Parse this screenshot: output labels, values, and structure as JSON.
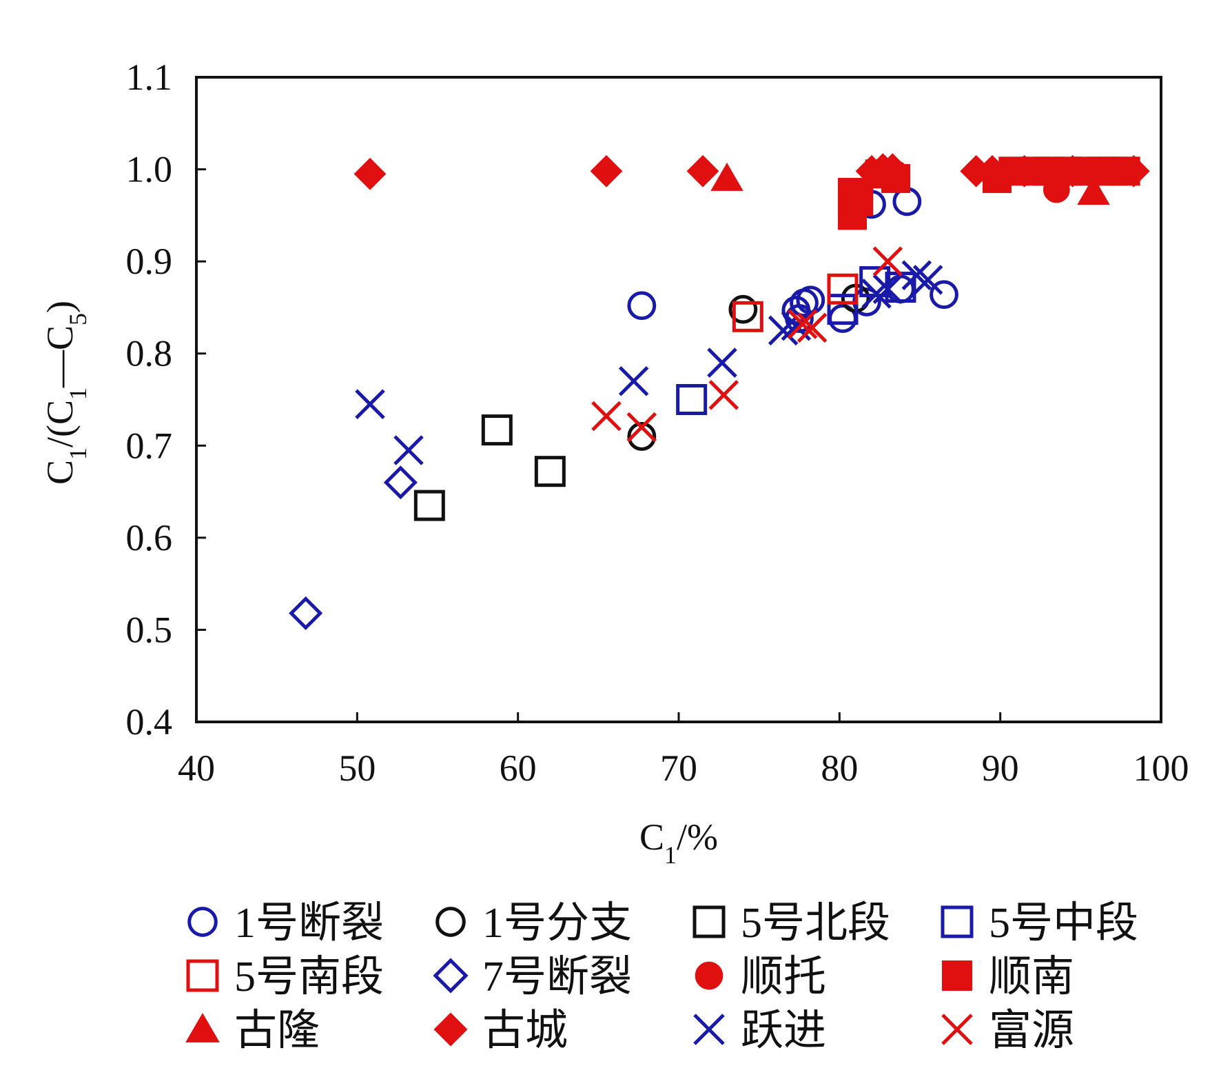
{
  "chart_data": {
    "type": "scatter",
    "title": "",
    "xlabel": "C1/%",
    "ylabel": "C1/(C1—C5)",
    "xlim": [
      40,
      100
    ],
    "ylim": [
      0.4,
      1.1
    ],
    "xticks": [
      "40",
      "50",
      "60",
      "70",
      "80",
      "90",
      "100"
    ],
    "yticks": [
      "0.4",
      "0.5",
      "0.6",
      "0.7",
      "0.8",
      "0.9",
      "1.0",
      "1.1"
    ],
    "grid": false,
    "legend_position": "bottom",
    "series": [
      {
        "name": "1号断裂",
        "marker": "circle-open",
        "color": "#1a1aa8",
        "points": [
          [
            67.7,
            0.852
          ],
          [
            77.3,
            0.847
          ],
          [
            77.8,
            0.855
          ],
          [
            78.2,
            0.858
          ],
          [
            77.5,
            0.838
          ],
          [
            80.2,
            0.838
          ],
          [
            81.7,
            0.856
          ],
          [
            83.8,
            0.87
          ],
          [
            86.5,
            0.864
          ],
          [
            82,
            0.962
          ],
          [
            84.2,
            0.965
          ]
        ]
      },
      {
        "name": "1号分支",
        "marker": "circle-open",
        "color": "#111111",
        "points": [
          [
            67.7,
            0.71
          ],
          [
            74,
            0.848
          ],
          [
            81,
            0.86
          ]
        ]
      },
      {
        "name": "5号北段",
        "marker": "square-open",
        "color": "#111111",
        "points": [
          [
            58.7,
            0.717
          ],
          [
            54.5,
            0.635
          ],
          [
            62,
            0.672
          ]
        ]
      },
      {
        "name": "5号中段",
        "marker": "square-open",
        "color": "#1a1aa8",
        "points": [
          [
            70.8,
            0.75
          ],
          [
            80.2,
            0.848
          ],
          [
            82.2,
            0.878
          ],
          [
            83.8,
            0.872
          ]
        ]
      },
      {
        "name": "5号南段",
        "marker": "square-open",
        "color": "#e01010",
        "points": [
          [
            74.3,
            0.84
          ],
          [
            80.2,
            0.87
          ]
        ]
      },
      {
        "name": "7号断裂",
        "marker": "diamond-open",
        "color": "#1a1aa8",
        "points": [
          [
            46.8,
            0.518
          ],
          [
            52.7,
            0.66
          ]
        ]
      },
      {
        "name": "顺托",
        "marker": "circle-filled",
        "color": "#e01010",
        "points": [
          [
            93.5,
            0.978
          ],
          [
            83.5,
            0.995
          ],
          [
            92.5,
            0.997
          ]
        ]
      },
      {
        "name": "顺南",
        "marker": "square-filled",
        "color": "#e01010",
        "points": [
          [
            80.8,
            0.95
          ],
          [
            80.8,
            0.975
          ],
          [
            81.2,
            0.965
          ],
          [
            82.5,
            0.995
          ],
          [
            83.5,
            0.99
          ],
          [
            89.8,
            0.99
          ],
          [
            90.8,
            0.998
          ],
          [
            92.2,
            0.998
          ],
          [
            93,
            0.998
          ],
          [
            94.2,
            0.998
          ],
          [
            95.5,
            0.998
          ],
          [
            96.3,
            0.998
          ],
          [
            97,
            0.998
          ],
          [
            97.8,
            0.998
          ]
        ]
      },
      {
        "name": "古隆",
        "marker": "triangle-filled",
        "color": "#e01010",
        "points": [
          [
            73,
            0.99
          ],
          [
            95.8,
            0.975
          ]
        ]
      },
      {
        "name": "古城",
        "marker": "diamond-filled",
        "color": "#e01010",
        "points": [
          [
            50.8,
            0.995
          ],
          [
            65.5,
            0.998
          ],
          [
            71.5,
            0.998
          ],
          [
            82,
            0.998
          ],
          [
            82.7,
            1.0
          ],
          [
            83.3,
            1.0
          ],
          [
            88.5,
            0.998
          ],
          [
            89.5,
            0.998
          ],
          [
            91.5,
            0.998
          ],
          [
            94.5,
            0.998
          ],
          [
            98.3,
            0.998
          ]
        ]
      },
      {
        "name": "跃进",
        "marker": "x",
        "color": "#1a1aa8",
        "points": [
          [
            50.8,
            0.745
          ],
          [
            53.2,
            0.695
          ],
          [
            67.2,
            0.77
          ],
          [
            72.7,
            0.79
          ],
          [
            76.5,
            0.825
          ],
          [
            77.3,
            0.83
          ],
          [
            82.3,
            0.865
          ],
          [
            83,
            0.87
          ],
          [
            84.8,
            0.885
          ],
          [
            85.5,
            0.88
          ]
        ]
      },
      {
        "name": "富源",
        "marker": "x",
        "color": "#e01010",
        "points": [
          [
            65.5,
            0.732
          ],
          [
            67.7,
            0.72
          ],
          [
            72.8,
            0.755
          ],
          [
            77.7,
            0.832
          ],
          [
            78.3,
            0.828
          ],
          [
            83,
            0.9
          ]
        ]
      }
    ]
  }
}
